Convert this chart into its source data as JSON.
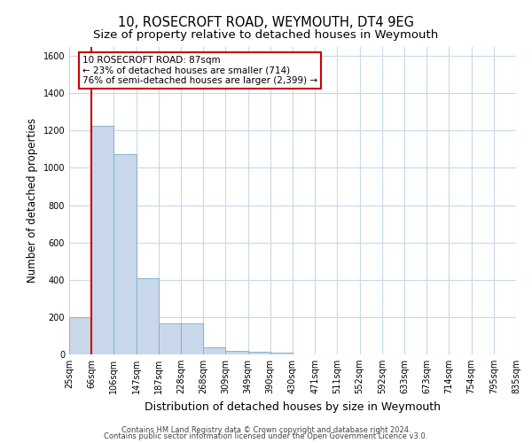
{
  "title": "10, ROSECROFT ROAD, WEYMOUTH, DT4 9EG",
  "subtitle": "Size of property relative to detached houses in Weymouth",
  "xlabel": "Distribution of detached houses by size in Weymouth",
  "ylabel": "Number of detached properties",
  "bar_color": "#c8d8ea",
  "bar_edge_color": "#7aaac8",
  "bar_values": [
    200,
    1225,
    1075,
    410,
    165,
    165,
    40,
    20,
    15,
    10,
    0,
    0,
    0,
    0,
    0,
    0,
    0,
    0,
    0,
    0
  ],
  "x_labels": [
    "25sqm",
    "66sqm",
    "106sqm",
    "147sqm",
    "187sqm",
    "228sqm",
    "268sqm",
    "309sqm",
    "349sqm",
    "390sqm",
    "430sqm",
    "471sqm",
    "511sqm",
    "552sqm",
    "592sqm",
    "633sqm",
    "673sqm",
    "714sqm",
    "754sqm",
    "795sqm",
    "835sqm"
  ],
  "ylim": [
    0,
    1650
  ],
  "yticks": [
    0,
    200,
    400,
    600,
    800,
    1000,
    1200,
    1400,
    1600
  ],
  "vline_x": 1.0,
  "annotation_text": "10 ROSECROFT ROAD: 87sqm\n← 23% of detached houses are smaller (714)\n76% of semi-detached houses are larger (2,399) →",
  "annotation_box_color": "#ffffff",
  "annotation_box_edge_color": "#cc0000",
  "vline_color": "#cc0000",
  "footer1": "Contains HM Land Registry data © Crown copyright and database right 2024.",
  "footer2": "Contains public sector information licensed under the Open Government Licence v3.0.",
  "bg_color": "#ffffff",
  "grid_color": "#c8d8ea",
  "title_fontsize": 10.5,
  "subtitle_fontsize": 9.5,
  "xlabel_fontsize": 9,
  "ylabel_fontsize": 8.5,
  "footer_fontsize": 6,
  "annotation_fontsize": 7.5,
  "tick_fontsize": 7
}
